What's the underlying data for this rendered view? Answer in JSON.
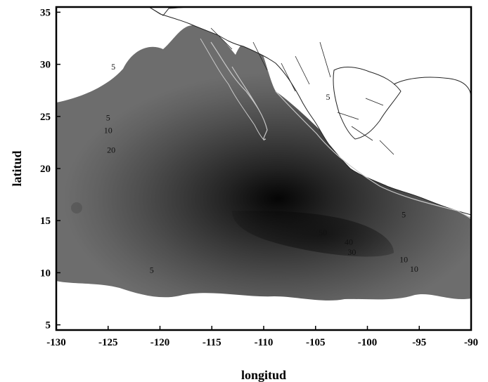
{
  "map": {
    "xlabel": "longitud",
    "ylabel": "latitud",
    "lon_range": [
      -130,
      -90
    ],
    "lat_range": [
      4.5,
      35.5
    ],
    "x_ticks": [
      "-130",
      "-125",
      "-120",
      "-115",
      "-110",
      "-105",
      "-100",
      "-95",
      "-90"
    ],
    "y_ticks": [
      "5",
      "10",
      "15",
      "20",
      "25",
      "30",
      "35"
    ],
    "shading": "grayscale density, darkest near 17.3N 108.8W",
    "colors": {
      "outer": "#6a6a6a",
      "core": "#050505",
      "coast": "#c8c8c8",
      "border": "#222222",
      "land": "#ffffff"
    },
    "contour_labels": [
      {
        "text": "5",
        "lon": -125,
        "lat": 24.6
      },
      {
        "text": "10",
        "lon": -125,
        "lat": 23.4
      },
      {
        "text": "20",
        "lon": -124.7,
        "lat": 21.5
      },
      {
        "text": "5",
        "lon": -124.5,
        "lat": 29.5
      },
      {
        "text": "5",
        "lon": -120.8,
        "lat": 10.0
      },
      {
        "text": "5",
        "lon": -103.8,
        "lat": 26.6
      },
      {
        "text": "5",
        "lon": -96.5,
        "lat": 15.3
      },
      {
        "text": "5",
        "lon": -110,
        "lat": 16
      },
      {
        "text": "50",
        "lon": -104.3,
        "lat": 13.6
      },
      {
        "text": "40",
        "lon": -101.8,
        "lat": 12.7
      },
      {
        "text": "30",
        "lon": -101.5,
        "lat": 11.7
      },
      {
        "text": "10",
        "lon": -96.5,
        "lat": 11.0
      },
      {
        "text": "10",
        "lon": -95.5,
        "lat": 10.1
      }
    ]
  }
}
